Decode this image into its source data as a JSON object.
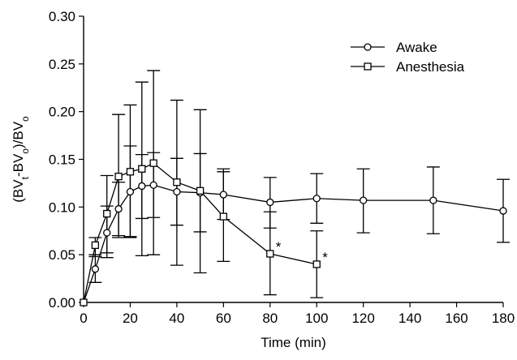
{
  "chart_data": {
    "type": "line",
    "xlabel": "Time (min)",
    "ylabel": {
      "parts": [
        {
          "text": "(BV",
          "sub": false
        },
        {
          "text": "t",
          "sub": true
        },
        {
          "text": "-BV",
          "sub": false
        },
        {
          "text": "o",
          "sub": true
        },
        {
          "text": ")/BV",
          "sub": false
        },
        {
          "text": "o",
          "sub": true
        }
      ]
    },
    "xlim": [
      0,
      180
    ],
    "ylim": [
      0,
      0.3
    ],
    "xticks": [
      0,
      20,
      40,
      60,
      80,
      100,
      120,
      140,
      160,
      180
    ],
    "yticks": [
      0.0,
      0.05,
      0.1,
      0.15,
      0.2,
      0.25,
      0.3
    ],
    "ytick_labels": [
      "0.00",
      "0.05",
      "0.10",
      "0.15",
      "0.20",
      "0.25",
      "0.30"
    ],
    "xtick_labels": [
      "0",
      "20",
      "40",
      "60",
      "80",
      "100",
      "120",
      "140",
      "160",
      "180"
    ],
    "legend_position": "top-right",
    "grid": false,
    "series": [
      {
        "name": "Awake",
        "marker": "circle",
        "points": [
          {
            "x": 0,
            "y": 0.0,
            "lo": 0.0,
            "hi": 0.0
          },
          {
            "x": 5,
            "y": 0.035,
            "lo": 0.021,
            "hi": 0.05
          },
          {
            "x": 10,
            "y": 0.073,
            "lo": 0.047,
            "hi": 0.101
          },
          {
            "x": 15,
            "y": 0.098,
            "lo": 0.07,
            "hi": 0.126
          },
          {
            "x": 20,
            "y": 0.116,
            "lo": 0.068,
            "hi": 0.164
          },
          {
            "x": 25,
            "y": 0.122,
            "lo": 0.088,
            "hi": 0.155
          },
          {
            "x": 30,
            "y": 0.123,
            "lo": 0.089,
            "hi": 0.157
          },
          {
            "x": 40,
            "y": 0.116,
            "lo": 0.081,
            "hi": 0.151
          },
          {
            "x": 50,
            "y": 0.115,
            "lo": 0.074,
            "hi": 0.156
          },
          {
            "x": 60,
            "y": 0.113,
            "lo": 0.087,
            "hi": 0.14
          },
          {
            "x": 80,
            "y": 0.105,
            "lo": 0.078,
            "hi": 0.131
          },
          {
            "x": 100,
            "y": 0.109,
            "lo": 0.083,
            "hi": 0.135
          },
          {
            "x": 120,
            "y": 0.107,
            "lo": 0.073,
            "hi": 0.14
          },
          {
            "x": 150,
            "y": 0.107,
            "lo": 0.072,
            "hi": 0.142
          },
          {
            "x": 180,
            "y": 0.096,
            "lo": 0.063,
            "hi": 0.129
          }
        ]
      },
      {
        "name": "Anesthesia",
        "marker": "square",
        "points": [
          {
            "x": 0,
            "y": 0.0,
            "lo": 0.0,
            "hi": 0.0
          },
          {
            "x": 5,
            "y": 0.06,
            "lo": 0.048,
            "hi": 0.068
          },
          {
            "x": 10,
            "y": 0.093,
            "lo": 0.052,
            "hi": 0.133
          },
          {
            "x": 15,
            "y": 0.132,
            "lo": 0.068,
            "hi": 0.197
          },
          {
            "x": 20,
            "y": 0.137,
            "lo": 0.069,
            "hi": 0.207
          },
          {
            "x": 25,
            "y": 0.14,
            "lo": 0.049,
            "hi": 0.231
          },
          {
            "x": 30,
            "y": 0.146,
            "lo": 0.05,
            "hi": 0.243
          },
          {
            "x": 40,
            "y": 0.126,
            "lo": 0.039,
            "hi": 0.212
          },
          {
            "x": 50,
            "y": 0.117,
            "lo": 0.031,
            "hi": 0.202
          },
          {
            "x": 60,
            "y": 0.09,
            "lo": 0.043,
            "hi": 0.137
          },
          {
            "x": 80,
            "y": 0.051,
            "lo": 0.008,
            "hi": 0.095,
            "annotation": "*"
          },
          {
            "x": 100,
            "y": 0.04,
            "lo": 0.005,
            "hi": 0.075,
            "annotation": "*"
          }
        ]
      }
    ]
  }
}
